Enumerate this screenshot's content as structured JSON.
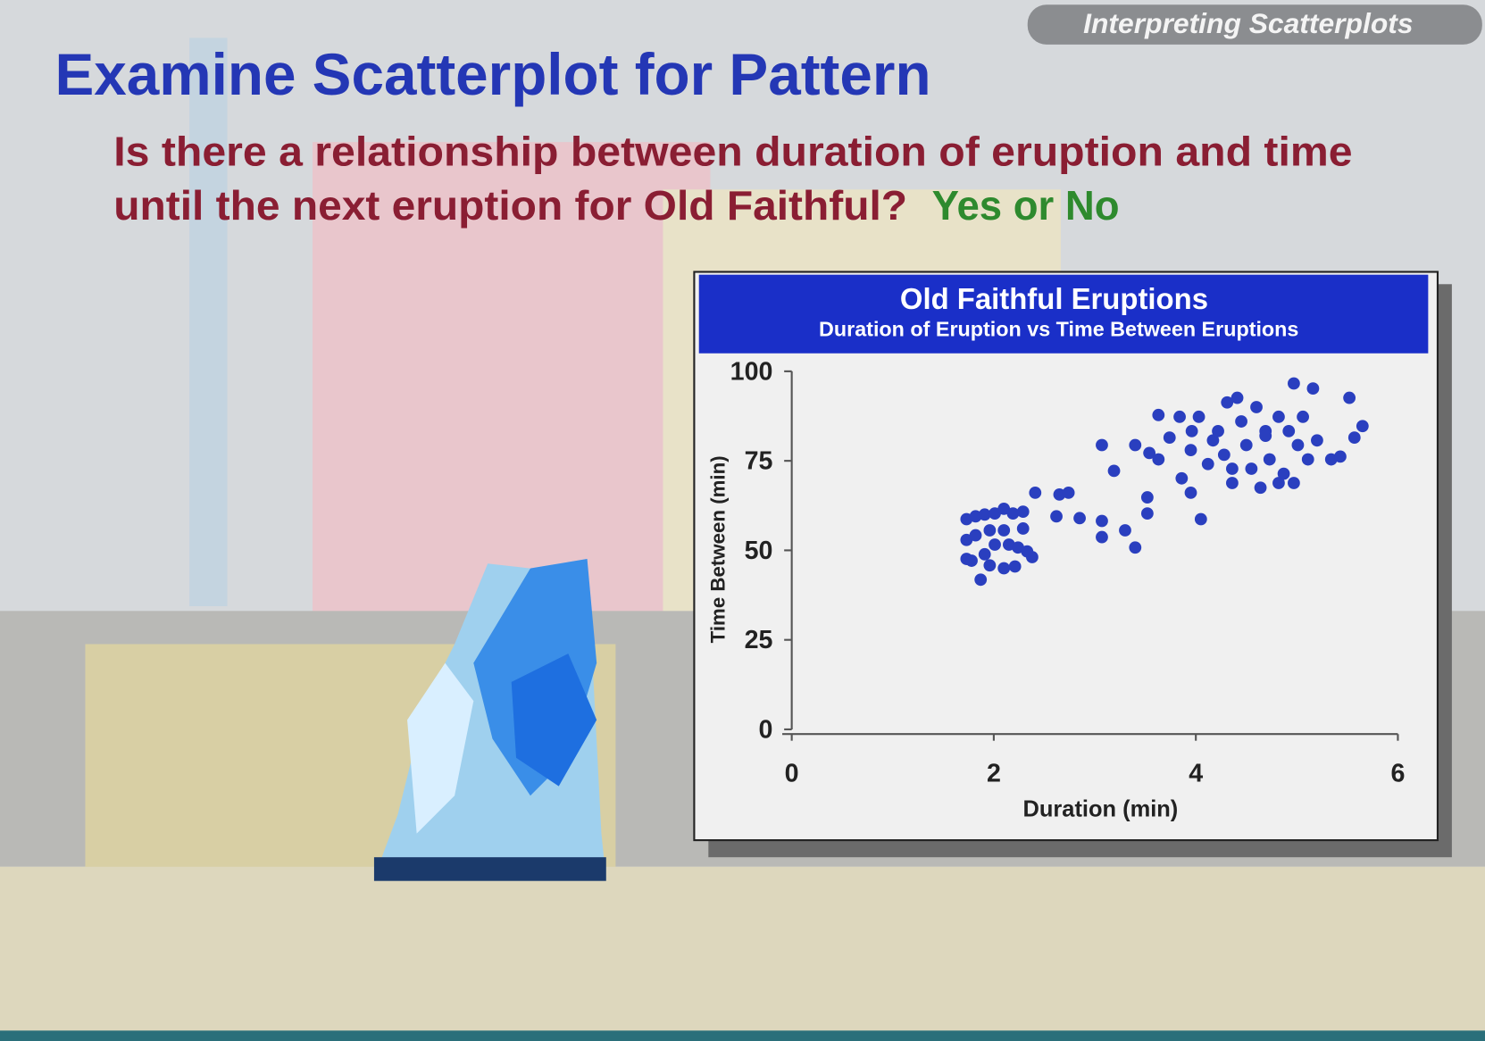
{
  "header": {
    "tag": "Interpreting Scatterplots",
    "title": "Examine Scatterplot for Pattern",
    "question": [
      "Is there a relationship between duration of eruption and time",
      "until the next eruption for Old Faithful?"
    ],
    "answer": "Yes or No"
  },
  "chart_data": {
    "type": "scatter",
    "title": "Old Faithful Eruptions",
    "subtitle": "Duration of Eruption vs Time Between Eruptions",
    "x_label": "Duration (min)",
    "y_label": "Time Between (min)",
    "color": "#2a3fbf",
    "x": [
      1.73,
      1.82,
      1.91,
      2.01,
      2.1,
      2.19,
      2.29,
      1.73,
      1.82,
      1.96,
      2.1,
      2.29,
      1.73,
      1.91,
      2.01,
      2.15,
      2.24,
      2.38,
      1.78,
      1.96,
      2.1,
      2.21,
      1.87,
      2.33,
      2.41,
      2.62,
      2.65,
      2.74,
      2.85,
      3.07,
      3.07,
      3.07,
      3.19,
      3.3,
      3.4,
      3.4,
      3.52,
      3.52,
      3.54,
      3.63,
      3.63,
      3.74,
      3.84,
      3.86,
      3.95,
      3.96,
      4.03,
      4.05,
      4.12,
      4.17,
      4.22,
      4.31,
      4.36,
      4.41,
      4.45,
      4.5,
      4.6,
      4.64,
      4.69,
      4.73,
      4.82,
      4.87,
      4.92,
      4.97,
      5.01,
      5.06,
      5.11,
      5.16,
      5.2,
      5.34,
      5.43,
      5.52,
      5.57,
      5.65,
      3.95,
      4.28,
      4.36,
      4.55,
      4.82,
      4.97,
      4.69
    ],
    "values": [
      58.7,
      59.5,
      60.0,
      60.3,
      61.6,
      60.3,
      60.8,
      52.9,
      54.2,
      55.6,
      55.6,
      56.1,
      47.6,
      48.9,
      51.6,
      51.6,
      50.8,
      48.1,
      47.1,
      45.8,
      45.0,
      45.5,
      41.8,
      49.7,
      66.1,
      59.5,
      65.6,
      66.1,
      59.0,
      79.4,
      58.2,
      53.7,
      72.2,
      55.6,
      50.8,
      79.4,
      64.8,
      60.3,
      77.2,
      75.4,
      87.8,
      81.5,
      87.3,
      70.1,
      66.1,
      83.3,
      87.3,
      58.7,
      74.1,
      80.7,
      83.3,
      91.3,
      68.8,
      92.6,
      86.0,
      79.4,
      90.0,
      67.5,
      83.3,
      75.4,
      87.3,
      71.4,
      83.3,
      96.6,
      79.4,
      87.3,
      75.4,
      95.2,
      80.7,
      75.4,
      76.2,
      92.6,
      81.5,
      84.7,
      78.0,
      76.7,
      72.8,
      72.8,
      68.8,
      68.8,
      82.0
    ],
    "xlim": [
      0,
      6
    ],
    "ylim": [
      0,
      100
    ],
    "xticks": [
      0,
      2,
      4,
      6
    ],
    "yticks": [
      0,
      25,
      50,
      75,
      100
    ]
  }
}
